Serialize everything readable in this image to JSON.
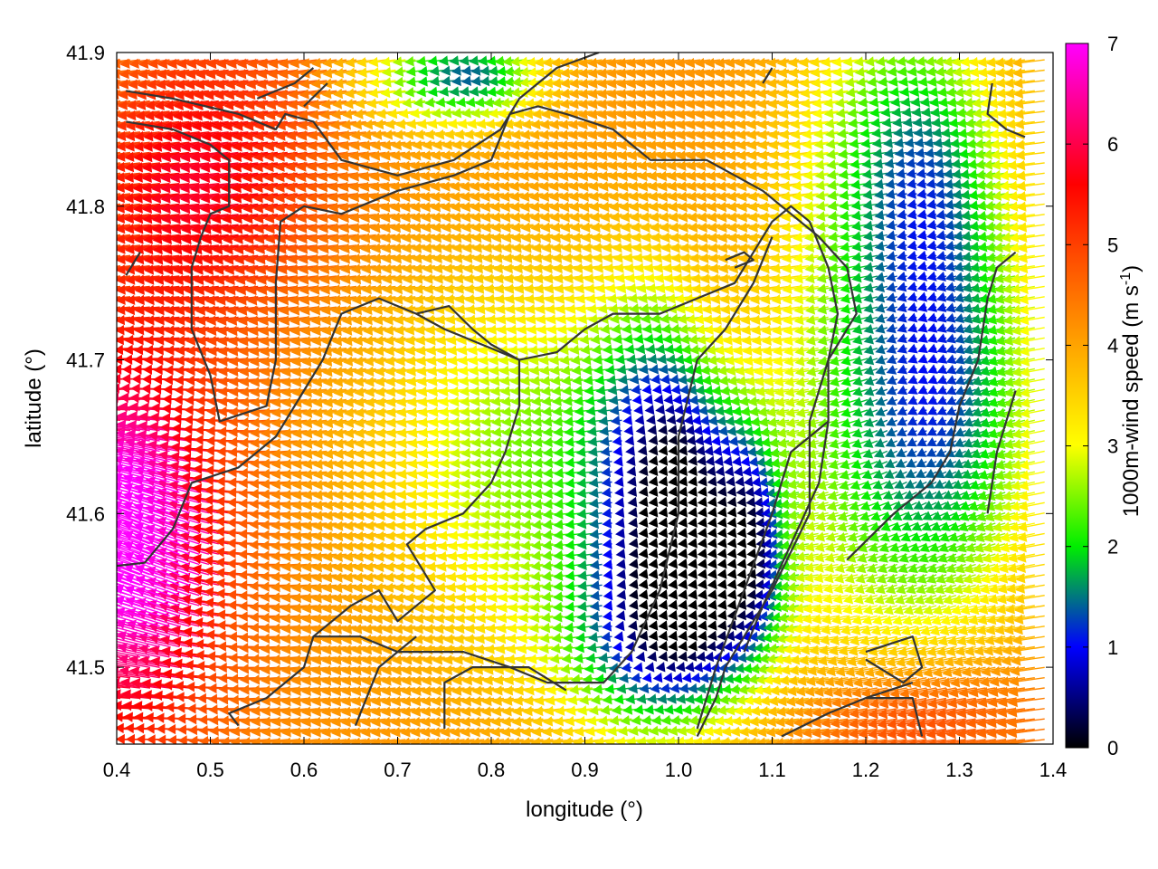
{
  "chart_data": {
    "type": "vector-field",
    "xlabel": "longitude (°)",
    "ylabel": "latitude (°)",
    "xlim": [
      0.4,
      1.4
    ],
    "ylim": [
      41.45,
      41.9
    ],
    "x_ticks": [
      "0.4",
      "0.5",
      "0.6",
      "0.7",
      "0.8",
      "0.9",
      "1.0",
      "1.1",
      "1.2",
      "1.3",
      "1.4"
    ],
    "y_ticks": [
      "41.5",
      "41.6",
      "41.7",
      "41.8",
      "41.9"
    ],
    "colorbar": {
      "label_main": "1000m-wind speed (m s",
      "label_sup": "-1",
      "label_end": ")",
      "range": [
        0,
        7
      ],
      "ticks": [
        "0",
        "1",
        "2",
        "3",
        "4",
        "5",
        "6",
        "7"
      ],
      "palette": [
        "#000000",
        "#0000ff",
        "#00ff00",
        "#ffff00",
        "#ffa500",
        "#ff0000",
        "#ff00ff"
      ]
    },
    "grid": false,
    "legend": "none",
    "contour_color": "#333333"
  }
}
